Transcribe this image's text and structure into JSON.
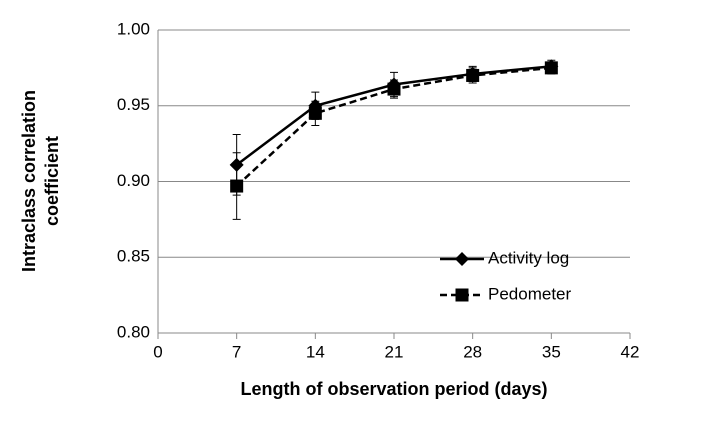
{
  "chart_data": {
    "type": "line",
    "xlabel": "Length of observation period (days)",
    "ylabel": [
      "Intraclass correlation",
      "coefficient"
    ],
    "x": [
      7,
      14,
      21,
      28,
      35
    ],
    "series": [
      {
        "name": "Activity log",
        "color": "#000000",
        "marker": "diamond",
        "dash": false,
        "values": [
          0.911,
          0.95,
          0.964,
          0.971,
          0.976
        ],
        "errors": [
          0.02,
          0.009,
          0.008,
          0.005,
          0.004
        ]
      },
      {
        "name": "Pedometer",
        "color": "#000000",
        "marker": "square",
        "dash": true,
        "values": [
          0.897,
          0.945,
          0.961,
          0.97,
          0.975
        ],
        "errors": [
          0.022,
          0.008,
          0.006,
          0.005,
          0.004
        ]
      }
    ],
    "xlim": [
      0,
      42
    ],
    "xticks": [
      0,
      7,
      14,
      21,
      28,
      35,
      42
    ],
    "ylim": [
      0.8,
      1.0
    ],
    "yticks": [
      {
        "value": 0.8,
        "label": "0.80"
      },
      {
        "value": 0.85,
        "label": "0.85"
      },
      {
        "value": 0.9,
        "label": "0.90"
      },
      {
        "value": 0.95,
        "label": "0.95"
      },
      {
        "value": 1.0,
        "label": "1.00"
      }
    ],
    "grid": true,
    "legend": "lower right"
  }
}
